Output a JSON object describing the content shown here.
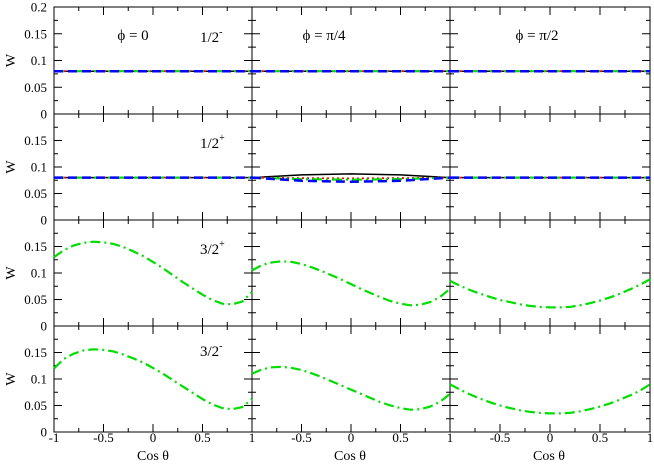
{
  "chart_data": {
    "type": "line",
    "layout": "4x3 grid",
    "xlabel": "Cos θ",
    "ylabel": "W",
    "xlim": [
      -1,
      1
    ],
    "ylim": [
      0,
      0.2
    ],
    "x_ticks": [
      -1,
      -0.5,
      0,
      0.5,
      1
    ],
    "x_tick_labels_first_col": [
      "-1",
      "-0.5",
      "0",
      "0.5",
      "1"
    ],
    "x_tick_labels_other_cols": [
      "-0.5",
      "0",
      "0.5",
      "1"
    ],
    "y_tick_labels_top_row": [
      "0",
      "0.05",
      "0.1",
      "0.15",
      "0.2"
    ],
    "y_tick_labels_other_rows": [
      "0",
      "0.05",
      "0.1",
      "0.15"
    ],
    "columns": [
      {
        "phi_label": "ϕ = 0"
      },
      {
        "phi_label": "ϕ = π/4"
      },
      {
        "phi_label": "ϕ = π/2"
      }
    ],
    "rows": [
      {
        "state": "1/2",
        "parity": "-"
      },
      {
        "state": "1/2",
        "parity": "+"
      },
      {
        "state": "3/2",
        "parity": "+"
      },
      {
        "state": "3/2",
        "parity": "-"
      }
    ],
    "series_styles": [
      {
        "color": "#000000",
        "dash": "",
        "width": 1.5
      },
      {
        "color": "#ff0000",
        "dash": "2,3",
        "width": 1.8
      },
      {
        "color": "#00dd00",
        "dash": "10,4,2,4",
        "width": 2.2
      },
      {
        "color": "#0000ff",
        "dash": "9,5",
        "width": 2.5
      }
    ],
    "panels": [
      {
        "row": 0,
        "col": 0,
        "series": [
          {
            "s": 0,
            "x": [
              -1,
              1
            ],
            "y": [
              0.08,
              0.08
            ]
          },
          {
            "s": 1,
            "x": [
              -1,
              1
            ],
            "y": [
              0.08,
              0.08
            ]
          },
          {
            "s": 2,
            "x": [
              -1,
              1
            ],
            "y": [
              0.08,
              0.08
            ]
          },
          {
            "s": 3,
            "x": [
              -1,
              1
            ],
            "y": [
              0.08,
              0.08
            ]
          }
        ]
      },
      {
        "row": 0,
        "col": 1,
        "series": [
          {
            "s": 0,
            "x": [
              -1,
              1
            ],
            "y": [
              0.08,
              0.08
            ]
          },
          {
            "s": 1,
            "x": [
              -1,
              1
            ],
            "y": [
              0.08,
              0.08
            ]
          },
          {
            "s": 2,
            "x": [
              -1,
              1
            ],
            "y": [
              0.08,
              0.08
            ]
          },
          {
            "s": 3,
            "x": [
              -1,
              1
            ],
            "y": [
              0.08,
              0.08
            ]
          }
        ]
      },
      {
        "row": 0,
        "col": 2,
        "series": [
          {
            "s": 0,
            "x": [
              -1,
              1
            ],
            "y": [
              0.08,
              0.08
            ]
          },
          {
            "s": 1,
            "x": [
              -1,
              1
            ],
            "y": [
              0.08,
              0.08
            ]
          },
          {
            "s": 2,
            "x": [
              -1,
              1
            ],
            "y": [
              0.08,
              0.08
            ]
          },
          {
            "s": 3,
            "x": [
              -1,
              1
            ],
            "y": [
              0.08,
              0.08
            ]
          }
        ]
      },
      {
        "row": 1,
        "col": 0,
        "series": [
          {
            "s": 0,
            "x": [
              -1,
              1
            ],
            "y": [
              0.08,
              0.08
            ]
          },
          {
            "s": 1,
            "x": [
              -1,
              1
            ],
            "y": [
              0.08,
              0.08
            ]
          },
          {
            "s": 2,
            "x": [
              -1,
              1
            ],
            "y": [
              0.08,
              0.08
            ]
          },
          {
            "s": 3,
            "x": [
              -1,
              1
            ],
            "y": [
              0.08,
              0.08
            ]
          }
        ]
      },
      {
        "row": 1,
        "col": 1,
        "series": [
          {
            "s": 0,
            "x": [
              -1,
              -0.5,
              0,
              0.5,
              1
            ],
            "y": [
              0.08,
              0.085,
              0.087,
              0.085,
              0.08
            ]
          },
          {
            "s": 1,
            "x": [
              -1,
              -0.5,
              0,
              0.5,
              1
            ],
            "y": [
              0.08,
              0.079,
              0.0785,
              0.079,
              0.08
            ]
          },
          {
            "s": 2,
            "x": [
              -1,
              -0.5,
              0,
              0.5,
              1
            ],
            "y": [
              0.08,
              0.077,
              0.076,
              0.077,
              0.08
            ]
          },
          {
            "s": 3,
            "x": [
              -1,
              -0.5,
              0,
              0.5,
              1
            ],
            "y": [
              0.08,
              0.074,
              0.072,
              0.074,
              0.08
            ]
          }
        ]
      },
      {
        "row": 1,
        "col": 2,
        "series": [
          {
            "s": 0,
            "x": [
              -1,
              1
            ],
            "y": [
              0.08,
              0.08
            ]
          },
          {
            "s": 1,
            "x": [
              -1,
              1
            ],
            "y": [
              0.08,
              0.08
            ]
          },
          {
            "s": 2,
            "x": [
              -1,
              1
            ],
            "y": [
              0.08,
              0.08
            ]
          },
          {
            "s": 3,
            "x": [
              -1,
              1
            ],
            "y": [
              0.08,
              0.08
            ]
          }
        ]
      },
      {
        "row": 2,
        "col": 0,
        "series": [
          {
            "s": 2,
            "x": [
              -1,
              -0.9,
              -0.8,
              -0.7,
              -0.6,
              -0.5,
              -0.4,
              -0.3,
              -0.2,
              -0.1,
              0,
              0.1,
              0.2,
              0.3,
              0.4,
              0.5,
              0.6,
              0.7,
              0.8,
              0.9,
              1
            ],
            "y": [
              0.13,
              0.143,
              0.152,
              0.157,
              0.159,
              0.158,
              0.155,
              0.149,
              0.141,
              0.132,
              0.121,
              0.109,
              0.096,
              0.083,
              0.071,
              0.059,
              0.049,
              0.042,
              0.041,
              0.046,
              0.064
            ]
          }
        ]
      },
      {
        "row": 2,
        "col": 1,
        "series": [
          {
            "s": 2,
            "x": [
              -1,
              -0.9,
              -0.8,
              -0.7,
              -0.6,
              -0.5,
              -0.4,
              -0.3,
              -0.2,
              -0.1,
              0,
              0.1,
              0.2,
              0.3,
              0.4,
              0.5,
              0.6,
              0.7,
              0.8,
              0.9,
              1
            ],
            "y": [
              0.105,
              0.115,
              0.12,
              0.122,
              0.121,
              0.117,
              0.111,
              0.104,
              0.096,
              0.088,
              0.079,
              0.07,
              0.062,
              0.054,
              0.047,
              0.042,
              0.039,
              0.04,
              0.045,
              0.055,
              0.07
            ]
          }
        ]
      },
      {
        "row": 2,
        "col": 2,
        "series": [
          {
            "s": 2,
            "x": [
              -1,
              -0.9,
              -0.8,
              -0.7,
              -0.6,
              -0.5,
              -0.4,
              -0.3,
              -0.2,
              -0.1,
              0,
              0.1,
              0.2,
              0.3,
              0.4,
              0.5,
              0.6,
              0.7,
              0.8,
              0.9,
              1
            ],
            "y": [
              0.085,
              0.076,
              0.068,
              0.061,
              0.055,
              0.049,
              0.045,
              0.041,
              0.038,
              0.036,
              0.035,
              0.035,
              0.036,
              0.039,
              0.043,
              0.048,
              0.054,
              0.061,
              0.069,
              0.078,
              0.088
            ]
          }
        ]
      },
      {
        "row": 3,
        "col": 0,
        "series": [
          {
            "s": 2,
            "x": [
              -1,
              -0.9,
              -0.8,
              -0.7,
              -0.6,
              -0.5,
              -0.4,
              -0.3,
              -0.2,
              -0.1,
              0,
              0.1,
              0.2,
              0.3,
              0.4,
              0.5,
              0.6,
              0.7,
              0.8,
              0.9,
              1
            ],
            "y": [
              0.12,
              0.138,
              0.148,
              0.154,
              0.156,
              0.155,
              0.152,
              0.146,
              0.139,
              0.131,
              0.121,
              0.11,
              0.098,
              0.086,
              0.074,
              0.062,
              0.052,
              0.045,
              0.043,
              0.047,
              0.062
            ]
          }
        ]
      },
      {
        "row": 3,
        "col": 1,
        "series": [
          {
            "s": 2,
            "x": [
              -1,
              -0.9,
              -0.8,
              -0.7,
              -0.6,
              -0.5,
              -0.4,
              -0.3,
              -0.2,
              -0.1,
              0,
              0.1,
              0.2,
              0.3,
              0.4,
              0.5,
              0.6,
              0.7,
              0.8,
              0.9,
              1
            ],
            "y": [
              0.11,
              0.118,
              0.122,
              0.123,
              0.121,
              0.117,
              0.111,
              0.104,
              0.096,
              0.088,
              0.08,
              0.072,
              0.064,
              0.056,
              0.05,
              0.045,
              0.042,
              0.043,
              0.048,
              0.057,
              0.072
            ]
          }
        ]
      },
      {
        "row": 3,
        "col": 2,
        "series": [
          {
            "s": 2,
            "x": [
              -1,
              -0.9,
              -0.8,
              -0.7,
              -0.6,
              -0.5,
              -0.4,
              -0.3,
              -0.2,
              -0.1,
              0,
              0.1,
              0.2,
              0.3,
              0.4,
              0.5,
              0.6,
              0.7,
              0.8,
              0.9,
              1
            ],
            "y": [
              0.09,
              0.08,
              0.071,
              0.063,
              0.056,
              0.05,
              0.045,
              0.041,
              0.038,
              0.036,
              0.035,
              0.035,
              0.036,
              0.039,
              0.043,
              0.048,
              0.054,
              0.061,
              0.069,
              0.078,
              0.09
            ]
          }
        ]
      }
    ]
  }
}
